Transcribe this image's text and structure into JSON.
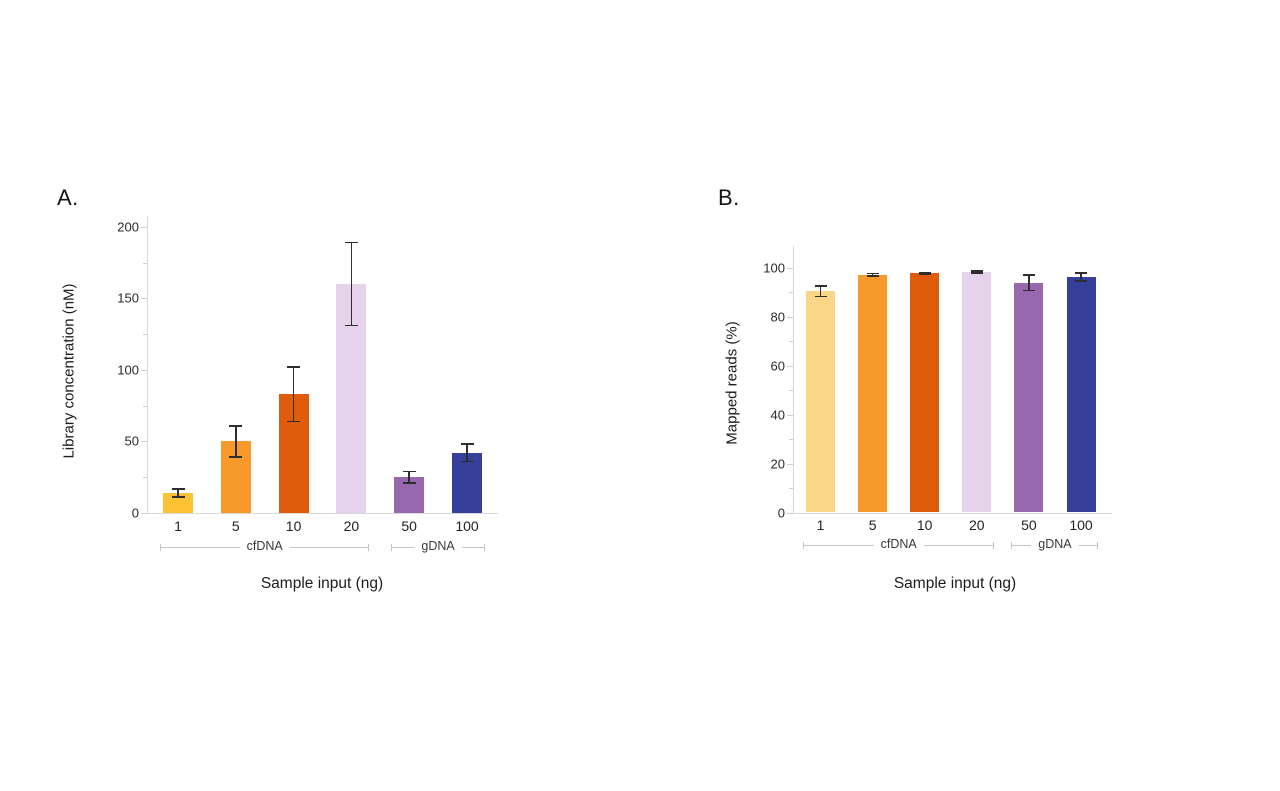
{
  "page": {
    "background": "#ffffff"
  },
  "chart_data": [
    {
      "type": "bar",
      "panel_label": "A.",
      "ylabel": "Library concentration (nM)",
      "xlabel": "Sample input (ng)",
      "ylim": [
        0,
        200
      ],
      "yticks": [
        0,
        50,
        100,
        150,
        200
      ],
      "minor_ticks": "midpoints",
      "grid": "off",
      "legend": "none",
      "categories": [
        "1",
        "5",
        "10",
        "20",
        "50",
        "100"
      ],
      "values": [
        14,
        50,
        83,
        160,
        25,
        42
      ],
      "errors": [
        3,
        11,
        19,
        29,
        4,
        6
      ],
      "bar_colors": [
        "#FBC334",
        "#F8992C",
        "#E05C0D",
        "#E5D3EB",
        "#9768AE",
        "#36409A"
      ],
      "error_bar_color": "#2e2e2e",
      "groups": [
        {
          "label": "cfDNA",
          "start": 0,
          "end": 3
        },
        {
          "label": "gDNA",
          "start": 4,
          "end": 5
        }
      ]
    },
    {
      "type": "bar",
      "panel_label": "B.",
      "ylabel": "Mapped reads (%)",
      "xlabel": "Sample input (ng)",
      "ylim": [
        0,
        100
      ],
      "yticks": [
        0,
        20,
        40,
        60,
        80,
        100
      ],
      "minor_ticks": "midpoints",
      "grid": "off",
      "legend": "none",
      "categories": [
        "1",
        "5",
        "10",
        "20",
        "50",
        "100"
      ],
      "values": [
        90.5,
        97.2,
        97.8,
        98.3,
        94,
        96.3
      ],
      "errors": [
        2.2,
        0.5,
        0.3,
        0.3,
        3.2,
        1.5
      ],
      "bar_colors": [
        "#FAD687",
        "#F8992C",
        "#E05C0D",
        "#E5D3EB",
        "#9768AE",
        "#36409A"
      ],
      "error_bar_color": "#2e2e2e",
      "groups": [
        {
          "label": "cfDNA",
          "start": 0,
          "end": 3
        },
        {
          "label": "gDNA",
          "start": 4,
          "end": 5
        }
      ]
    }
  ]
}
